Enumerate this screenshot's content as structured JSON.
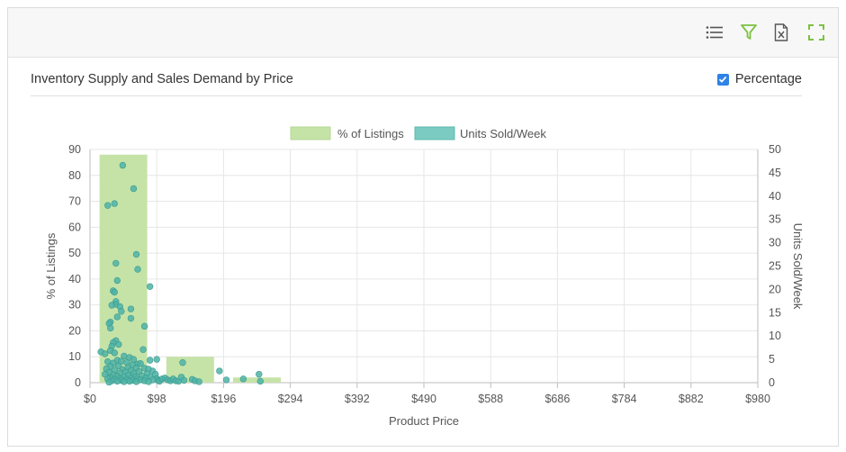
{
  "toolbar": {
    "icons": [
      "list-icon",
      "filter-icon",
      "excel-export-icon",
      "fullscreen-icon"
    ],
    "accent_color": "#7cc242"
  },
  "header": {
    "title": "Inventory Supply and Sales Demand by Price",
    "percentage_label": "Percentage",
    "percentage_checked": true
  },
  "chart_data": {
    "type": "bar",
    "title": "Inventory Supply and Sales Demand by Price",
    "xlabel": "Product Price",
    "ylabel_left": "% of Listings",
    "ylabel_right": "Units Sold/Week",
    "x_ticks": [
      "$0",
      "$98",
      "$196",
      "$294",
      "$392",
      "$490",
      "$588",
      "$686",
      "$784",
      "$882",
      "$980"
    ],
    "xlim": [
      0,
      980
    ],
    "ylim_left": [
      0,
      90
    ],
    "y_ticks_left": [
      0,
      10,
      20,
      30,
      40,
      50,
      60,
      70,
      80,
      90
    ],
    "ylim_right": [
      0,
      50
    ],
    "y_ticks_right": [
      0,
      5,
      10,
      15,
      20,
      25,
      30,
      35,
      40,
      45,
      50
    ],
    "grid": true,
    "legend_position": "top-center",
    "series": [
      {
        "name": "% of Listings",
        "kind": "bar",
        "color": "#c5e3a7",
        "bars": [
          {
            "x0": 14,
            "x1": 84,
            "value": 88
          },
          {
            "x0": 112,
            "x1": 182,
            "value": 10
          },
          {
            "x0": 210,
            "x1": 280,
            "value": 2
          }
        ]
      },
      {
        "name": "Units Sold/Week",
        "kind": "scatter",
        "color": "#4fb3a7",
        "points": [
          [
            48,
            46.6
          ],
          [
            64,
            41.6
          ],
          [
            36,
            38.4
          ],
          [
            26,
            38.0
          ],
          [
            68,
            27.5
          ],
          [
            70,
            24.3
          ],
          [
            38,
            25.6
          ],
          [
            88,
            20.6
          ],
          [
            40,
            21.9
          ],
          [
            34,
            19.7
          ],
          [
            36,
            19.4
          ],
          [
            38,
            17.4
          ],
          [
            38,
            16.8
          ],
          [
            32,
            16.6
          ],
          [
            44,
            16.3
          ],
          [
            60,
            15.8
          ],
          [
            46,
            15.3
          ],
          [
            40,
            14.1
          ],
          [
            30,
            13.0
          ],
          [
            28,
            12.7
          ],
          [
            60,
            13.8
          ],
          [
            80,
            12.1
          ],
          [
            30,
            11.7
          ],
          [
            38,
            9.0
          ],
          [
            34,
            8.6
          ],
          [
            32,
            7.8
          ],
          [
            42,
            8.2
          ],
          [
            30,
            6.9
          ],
          [
            16,
            6.6
          ],
          [
            36,
            6.4
          ],
          [
            22,
            6.2
          ],
          [
            78,
            7.1
          ],
          [
            50,
            5.7
          ],
          [
            58,
            5.4
          ],
          [
            64,
            5.0
          ],
          [
            40,
            4.8
          ],
          [
            46,
            4.6
          ],
          [
            26,
            4.5
          ],
          [
            54,
            4.3
          ],
          [
            34,
            4.2
          ],
          [
            70,
            4.0
          ],
          [
            74,
            4.1
          ],
          [
            88,
            4.8
          ],
          [
            98,
            5.0
          ],
          [
            62,
            3.8
          ],
          [
            42,
            3.6
          ],
          [
            30,
            3.5
          ],
          [
            56,
            3.3
          ],
          [
            68,
            3.2
          ],
          [
            80,
            3.1
          ],
          [
            86,
            2.9
          ],
          [
            24,
            3.0
          ],
          [
            48,
            2.8
          ],
          [
            36,
            2.7
          ],
          [
            60,
            2.6
          ],
          [
            92,
            2.5
          ],
          [
            72,
            2.4
          ],
          [
            52,
            2.3
          ],
          [
            28,
            2.2
          ],
          [
            44,
            2.1
          ],
          [
            64,
            2.0
          ],
          [
            84,
            1.9
          ],
          [
            96,
            1.8
          ],
          [
            22,
            1.8
          ],
          [
            34,
            1.7
          ],
          [
            56,
            1.6
          ],
          [
            76,
            1.5
          ],
          [
            40,
            1.4
          ],
          [
            66,
            1.3
          ],
          [
            88,
            1.2
          ],
          [
            50,
            1.2
          ],
          [
            30,
            1.1
          ],
          [
            60,
            1.0
          ],
          [
            82,
            1.0
          ],
          [
            98,
            0.9
          ],
          [
            44,
            0.9
          ],
          [
            70,
            0.8
          ],
          [
            26,
            0.8
          ],
          [
            36,
            0.7
          ],
          [
            54,
            0.7
          ],
          [
            74,
            0.6
          ],
          [
            92,
            0.6
          ],
          [
            62,
            0.5
          ],
          [
            46,
            0.5
          ],
          [
            32,
            0.4
          ],
          [
            80,
            0.4
          ],
          [
            58,
            0.3
          ],
          [
            40,
            0.3
          ],
          [
            68,
            0.2
          ],
          [
            86,
            0.2
          ],
          [
            50,
            0.2
          ],
          [
            28,
            0.1
          ],
          [
            100,
            0.5
          ],
          [
            102,
            0.3
          ],
          [
            106,
            0.8
          ],
          [
            110,
            1.0
          ],
          [
            114,
            0.6
          ],
          [
            118,
            0.4
          ],
          [
            122,
            0.8
          ],
          [
            126,
            0.4
          ],
          [
            130,
            0.3
          ],
          [
            134,
            1.2
          ],
          [
            138,
            0.5
          ],
          [
            136,
            4.3
          ],
          [
            150,
            0.7
          ],
          [
            154,
            0.4
          ],
          [
            160,
            0.2
          ],
          [
            190,
            2.5
          ],
          [
            200,
            0.6
          ],
          [
            225,
            0.8
          ],
          [
            248,
            1.8
          ],
          [
            250,
            0.3
          ]
        ]
      }
    ]
  }
}
